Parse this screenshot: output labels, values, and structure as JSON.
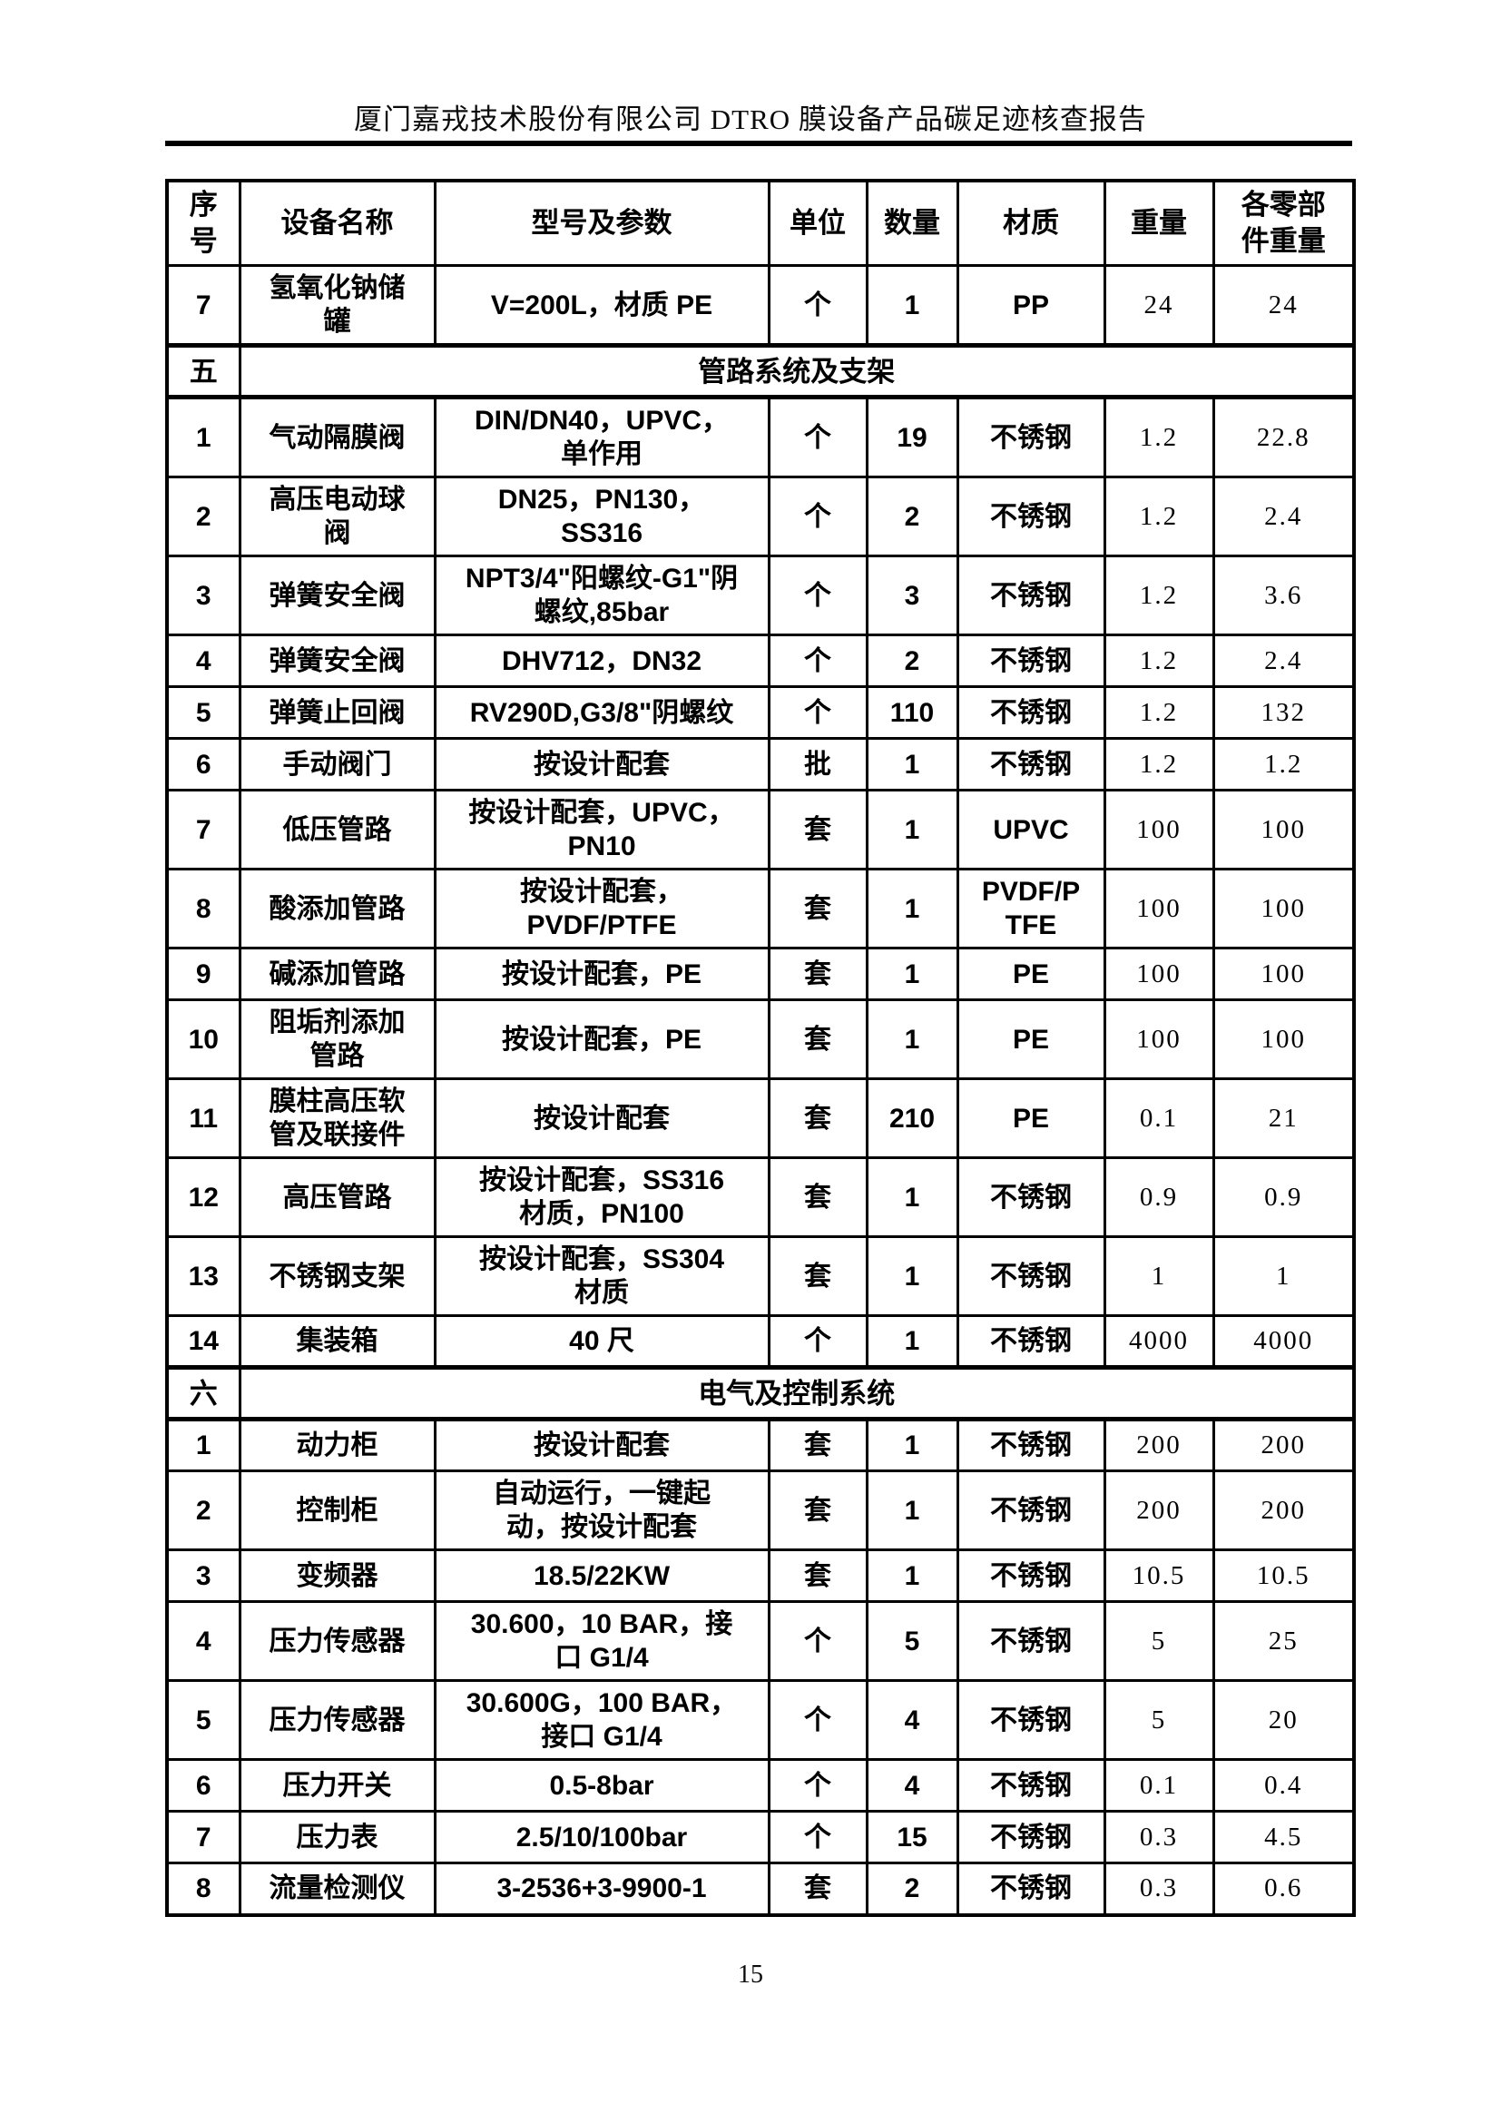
{
  "page": {
    "title": "厦门嘉戎技术股份有限公司 DTRO 膜设备产品碳足迹核查报告",
    "page_number": "15"
  },
  "table": {
    "headers": [
      "序\n号",
      "设备名称",
      "型号及参数",
      "单位",
      "数量",
      "材质",
      "重量",
      "各零部\n件重量"
    ],
    "rows": [
      {
        "type": "item",
        "cells": [
          "7",
          "氢氧化钠储\n罐",
          "V=200L，材质 PE",
          "个",
          "1",
          "PP",
          "24",
          "24"
        ]
      },
      {
        "type": "section",
        "index": "五",
        "label": "管路系统及支架"
      },
      {
        "type": "item",
        "cells": [
          "1",
          "气动隔膜阀",
          "DIN/DN40，UPVC，\n单作用",
          "个",
          "19",
          "不锈钢",
          "1.2",
          "22.8"
        ]
      },
      {
        "type": "item",
        "cells": [
          "2",
          "高压电动球\n阀",
          "DN25，PN130，\nSS316",
          "个",
          "2",
          "不锈钢",
          "1.2",
          "2.4"
        ]
      },
      {
        "type": "item",
        "cells": [
          "3",
          "弹簧安全阀",
          "NPT3/4\"阳螺纹-G1\"阴\n螺纹,85bar",
          "个",
          "3",
          "不锈钢",
          "1.2",
          "3.6"
        ]
      },
      {
        "type": "item",
        "cells": [
          "4",
          "弹簧安全阀",
          "DHV712，DN32",
          "个",
          "2",
          "不锈钢",
          "1.2",
          "2.4"
        ]
      },
      {
        "type": "item",
        "cells": [
          "5",
          "弹簧止回阀",
          "RV290D,G3/8\"阴螺纹",
          "个",
          "110",
          "不锈钢",
          "1.2",
          "132"
        ]
      },
      {
        "type": "item",
        "cells": [
          "6",
          "手动阀门",
          "按设计配套",
          "批",
          "1",
          "不锈钢",
          "1.2",
          "1.2"
        ]
      },
      {
        "type": "item",
        "cells": [
          "7",
          "低压管路",
          "按设计配套，UPVC，\nPN10",
          "套",
          "1",
          "UPVC",
          "100",
          "100"
        ]
      },
      {
        "type": "item",
        "cells": [
          "8",
          "酸添加管路",
          "按设计配套，\nPVDF/PTFE",
          "套",
          "1",
          "PVDF/P\nTFE",
          "100",
          "100"
        ]
      },
      {
        "type": "item",
        "cells": [
          "9",
          "碱添加管路",
          "按设计配套，PE",
          "套",
          "1",
          "PE",
          "100",
          "100"
        ]
      },
      {
        "type": "item",
        "cells": [
          "10",
          "阻垢剂添加\n管路",
          "按设计配套，PE",
          "套",
          "1",
          "PE",
          "100",
          "100"
        ]
      },
      {
        "type": "item",
        "cells": [
          "11",
          "膜柱高压软\n管及联接件",
          "按设计配套",
          "套",
          "210",
          "PE",
          "0.1",
          "21"
        ]
      },
      {
        "type": "item",
        "cells": [
          "12",
          "高压管路",
          "按设计配套，SS316\n材质，PN100",
          "套",
          "1",
          "不锈钢",
          "0.9",
          "0.9"
        ]
      },
      {
        "type": "item",
        "cells": [
          "13",
          "不锈钢支架",
          "按设计配套，SS304\n材质",
          "套",
          "1",
          "不锈钢",
          "1",
          "1"
        ]
      },
      {
        "type": "item",
        "cells": [
          "14",
          "集装箱",
          "40 尺",
          "个",
          "1",
          "不锈钢",
          "4000",
          "4000"
        ]
      },
      {
        "type": "section",
        "index": "六",
        "label": "电气及控制系统"
      },
      {
        "type": "item",
        "cells": [
          "1",
          "动力柜",
          "按设计配套",
          "套",
          "1",
          "不锈钢",
          "200",
          "200"
        ]
      },
      {
        "type": "item",
        "cells": [
          "2",
          "控制柜",
          "自动运行，一键起\n动，按设计配套",
          "套",
          "1",
          "不锈钢",
          "200",
          "200"
        ]
      },
      {
        "type": "item",
        "cells": [
          "3",
          "变频器",
          "18.5/22KW",
          "套",
          "1",
          "不锈钢",
          "10.5",
          "10.5"
        ]
      },
      {
        "type": "item",
        "cells": [
          "4",
          "压力传感器",
          "30.600，10 BAR，接\n口 G1/4",
          "个",
          "5",
          "不锈钢",
          "5",
          "25"
        ]
      },
      {
        "type": "item",
        "cells": [
          "5",
          "压力传感器",
          "30.600G，100 BAR，\n接口 G1/4",
          "个",
          "4",
          "不锈钢",
          "5",
          "20"
        ]
      },
      {
        "type": "item",
        "cells": [
          "6",
          "压力开关",
          "0.5-8bar",
          "个",
          "4",
          "不锈钢",
          "0.1",
          "0.4"
        ]
      },
      {
        "type": "item",
        "cells": [
          "7",
          "压力表",
          "2.5/10/100bar",
          "个",
          "15",
          "不锈钢",
          "0.3",
          "4.5"
        ]
      },
      {
        "type": "item",
        "cells": [
          "8",
          "流量检测仪",
          "3-2536+3-9900-1",
          "套",
          "2",
          "不锈钢",
          "0.3",
          "0.6"
        ]
      }
    ]
  }
}
